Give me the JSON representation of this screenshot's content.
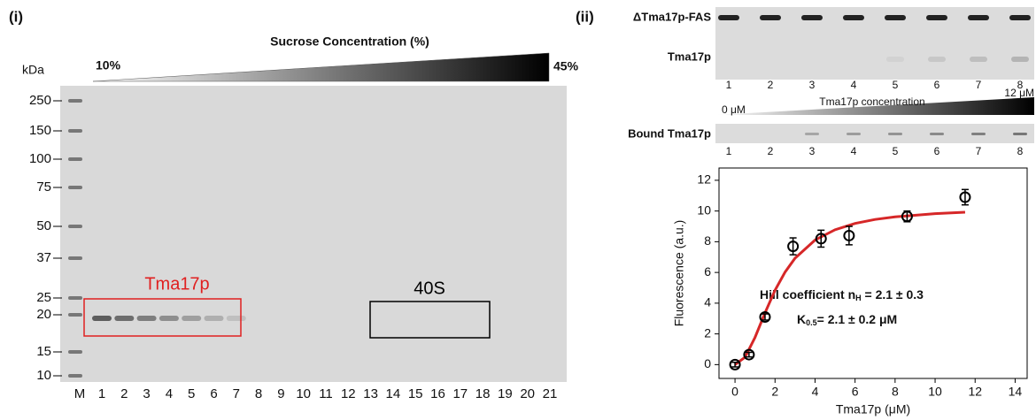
{
  "panel_i": {
    "label": "(i)",
    "gradient_title": "Sucrose Concentration (%)",
    "gradient_start": "10%",
    "gradient_end": "45%",
    "unit": "kDa",
    "markers": [
      "250",
      "150",
      "100",
      "75",
      "50",
      "37",
      "25",
      "20",
      "15",
      "10"
    ],
    "lanes": [
      "M",
      "1",
      "2",
      "3",
      "4",
      "5",
      "6",
      "7",
      "8",
      "9",
      "10",
      "11",
      "12",
      "13",
      "14",
      "15",
      "16",
      "17",
      "18",
      "19",
      "20",
      "21"
    ],
    "boxes": [
      {
        "label": "Tma17p",
        "color": "#e02020"
      },
      {
        "label": "40S",
        "color": "#000000"
      }
    ]
  },
  "panel_ii": {
    "label": "(ii)",
    "gel1": {
      "rows": [
        "ΔTma17p-FAS",
        "Tma17p"
      ],
      "lanes": [
        "1",
        "2",
        "3",
        "4",
        "5",
        "6",
        "7",
        "8"
      ]
    },
    "gradient": {
      "title": "Tma17p concentration",
      "start": "0 μM",
      "end": "12 μM"
    },
    "gel2": {
      "rows": [
        "Bound Tma17p"
      ],
      "lanes": [
        "1",
        "2",
        "3",
        "4",
        "5",
        "6",
        "7",
        "8"
      ]
    }
  },
  "chart_data": {
    "type": "scatter",
    "xlabel": "Tma17p (μM)",
    "ylabel": "Fluorescence (a.u.)",
    "x": [
      0,
      0.7,
      1.5,
      2.9,
      4.3,
      5.7,
      8.6,
      11.5
    ],
    "values": [
      0,
      0.65,
      3.1,
      7.7,
      8.2,
      8.4,
      9.65,
      10.9
    ],
    "errors": [
      0.15,
      0.15,
      0.2,
      0.55,
      0.55,
      0.6,
      0.35,
      0.5
    ],
    "color": "#000000",
    "fit": {
      "color": "#d62728",
      "x": [
        0,
        0.5,
        1,
        1.5,
        2,
        2.5,
        3,
        4,
        5,
        6,
        7,
        8,
        10,
        11.5
      ],
      "values": [
        0,
        0.48,
        1.77,
        3.37,
        4.84,
        6.02,
        6.93,
        8.11,
        8.78,
        9.19,
        9.45,
        9.62,
        9.83,
        9.92
      ]
    },
    "xlim": [
      -0.8,
      14.6
    ],
    "ylim": [
      -0.9,
      12.8
    ],
    "xticks": [
      0,
      2,
      4,
      6,
      8,
      10,
      12,
      14
    ],
    "yticks": [
      0,
      2,
      4,
      6,
      8,
      10,
      12
    ],
    "annotations": {
      "hill_prefix": "Hill coefficient n",
      "hill_sub": "H",
      "hill_value": " = 2.1 ± 0.3",
      "k_prefix": "K",
      "k_sub": "0.5",
      "k_value": "= 2.1 ± 0.2 μM"
    }
  }
}
